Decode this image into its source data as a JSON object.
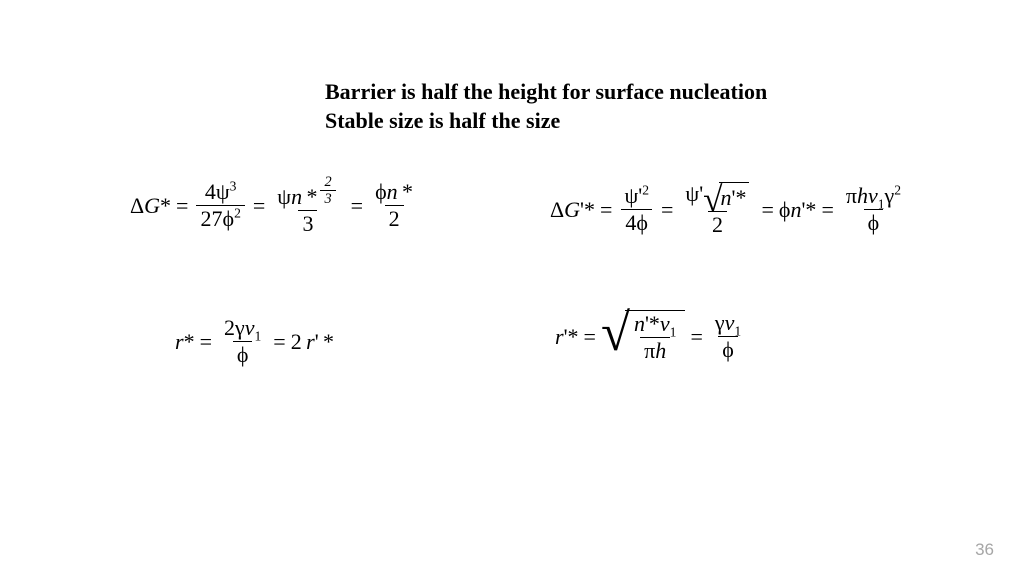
{
  "heading": {
    "line1": "Barrier is half the height for surface nucleation",
    "line2": "Stable size is half the size"
  },
  "page_number": "36",
  "colors": {
    "background": "#ffffff",
    "text": "#000000",
    "page_number": "#a6a6a6"
  },
  "equations": {
    "eq1": {
      "lhs": "ΔG*",
      "frac1_num": "4ψ³",
      "frac1_den": "27ϕ²",
      "frac2_num": "ψn*^{2/3}",
      "frac2_den": "3",
      "frac3_num": "ϕn*",
      "frac3_den": "2"
    },
    "eq2": {
      "lhs": "ΔG'*",
      "frac1_num": "ψ'²",
      "frac1_den": "4ϕ",
      "frac2_num": "ψ'√(n'*)",
      "frac2_den": "2",
      "term3": "ϕn'*",
      "frac4_num": "πhv₁γ²",
      "frac4_den": "ϕ"
    },
    "eq3": {
      "lhs": "r*",
      "frac1_num": "2γv₁",
      "frac1_den": "ϕ",
      "rhs": "2r'*"
    },
    "eq4": {
      "lhs": "r'*",
      "sqrt_num": "n'*v₁",
      "sqrt_den": "πh",
      "frac2_num": "γv₁",
      "frac2_den": "ϕ"
    }
  }
}
